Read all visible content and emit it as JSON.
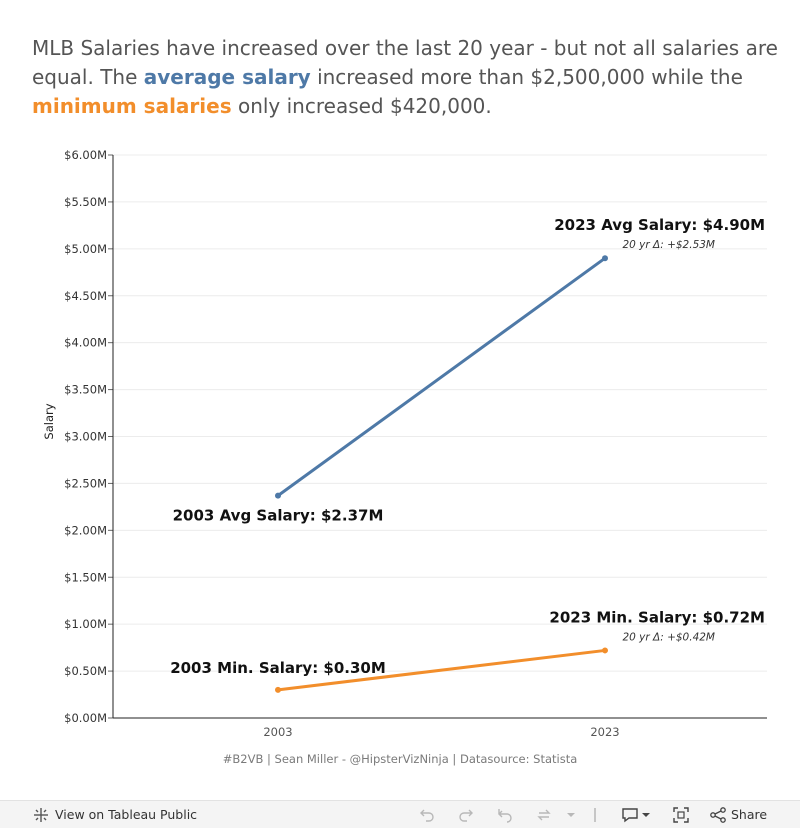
{
  "headline": {
    "part1": "MLB Salaries have increased over the last 20 year - but not all salaries are equal. The ",
    "avg_label": "average salary",
    "part2": " increased more than $2,500,000 while the ",
    "min_label": "minimum salaries",
    "part3": " only increased $420,000."
  },
  "chart_data": {
    "type": "line",
    "ylabel": "Salary",
    "xlabel": "",
    "x": [
      "2003",
      "2023"
    ],
    "ylim": [
      0,
      6.0
    ],
    "y_ticks": [
      "$0.00M",
      "$0.50M",
      "$1.00M",
      "$1.50M",
      "$2.00M",
      "$2.50M",
      "$3.00M",
      "$3.50M",
      "$4.00M",
      "$4.50M",
      "$5.00M",
      "$5.50M",
      "$6.00M"
    ],
    "grid": true,
    "series": [
      {
        "key": "avg",
        "values": [
          2.37,
          4.9
        ],
        "color": "#4e79a7",
        "labels": [
          "2003 Avg Salary: $2.37M",
          "2023 Avg Salary: $4.90M"
        ],
        "delta_label": "20 yr Δ: +$2.53M"
      },
      {
        "key": "min",
        "values": [
          0.3,
          0.72
        ],
        "color": "#f28e2b",
        "labels": [
          "2003 Min. Salary: $0.30M",
          "2023 Min. Salary: $0.72M"
        ],
        "delta_label": "20 yr Δ: +$0.42M"
      }
    ]
  },
  "credit": "#B2VB | Sean Miller - @HipsterVizNinja | Datasource: Statista",
  "toolbar": {
    "view_label": "View on Tableau Public",
    "share_label": "Share"
  }
}
